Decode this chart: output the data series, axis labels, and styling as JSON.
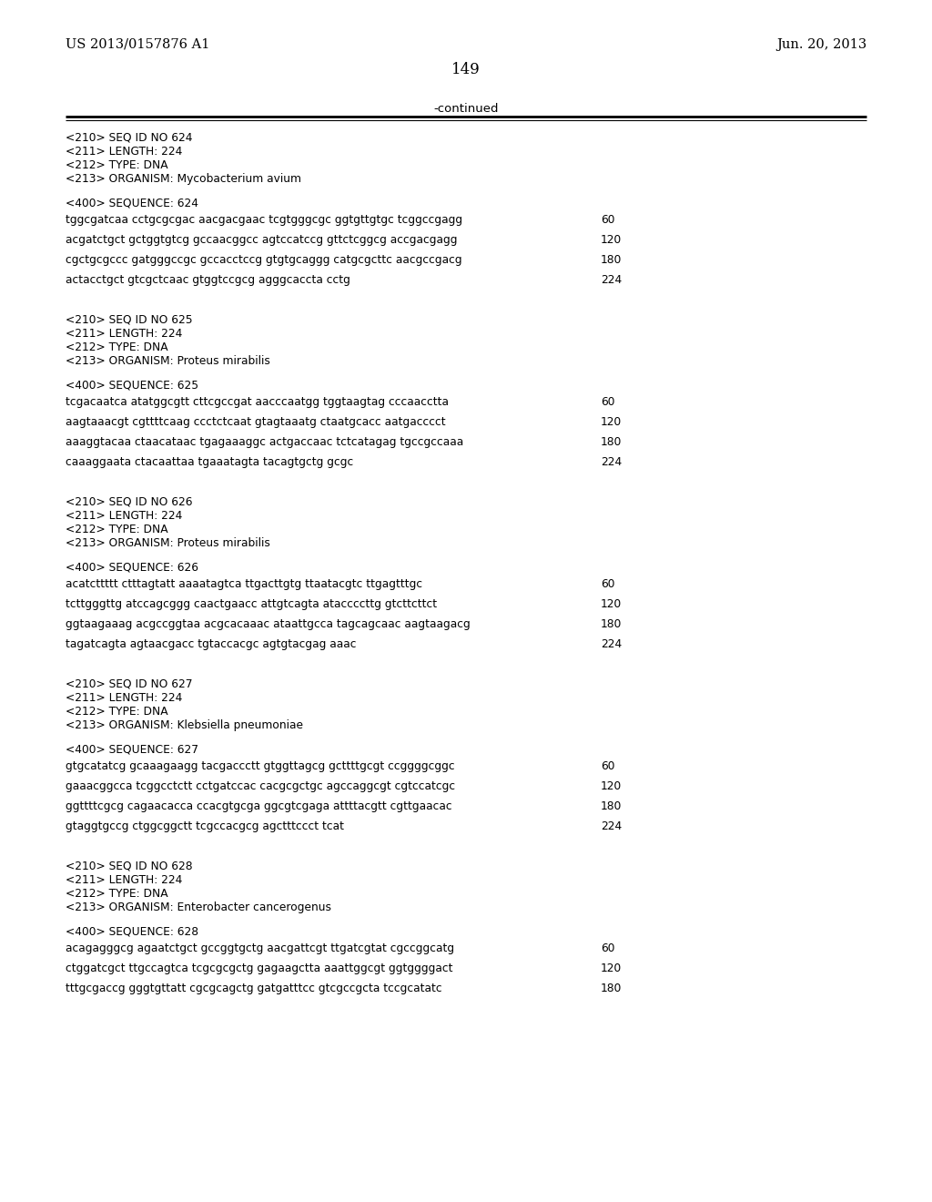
{
  "bg_color": "#ffffff",
  "header_left": "US 2013/0157876 A1",
  "header_right": "Jun. 20, 2013",
  "page_number": "149",
  "continued_text": "-continued",
  "font_mono": "Courier New",
  "font_serif": "DejaVu Serif",
  "sections": [
    {
      "meta": [
        "<210> SEQ ID NO 624",
        "<211> LENGTH: 224",
        "<212> TYPE: DNA",
        "<213> ORGANISM: Mycobacterium avium"
      ],
      "seq_label": "<400> SEQUENCE: 624",
      "sequence_lines": [
        [
          "tggcgatcaa cctgcgcgac aacgacgaac tcgtgggcgc ggtgttgtgc tcggccgagg",
          "60"
        ],
        [
          "acgatctgct gctggtgtcg gccaacggcc agtccatccg gttctcggcg accgacgagg",
          "120"
        ],
        [
          "cgctgcgccc gatgggccgc gccacctccg gtgtgcaggg catgcgcttc aacgccgacg",
          "180"
        ],
        [
          "actacctgct gtcgctcaac gtggtccgcg agggcaccta cctg",
          "224"
        ]
      ]
    },
    {
      "meta": [
        "<210> SEQ ID NO 625",
        "<211> LENGTH: 224",
        "<212> TYPE: DNA",
        "<213> ORGANISM: Proteus mirabilis"
      ],
      "seq_label": "<400> SEQUENCE: 625",
      "sequence_lines": [
        [
          "tcgacaatca atatggcgtt cttcgccgat aacccaatgg tggtaagtag cccaacctta",
          "60"
        ],
        [
          "aagtaaacgt cgttttcaag ccctctcaat gtagtaaatg ctaatgcacc aatgacccct",
          "120"
        ],
        [
          "aaaggtacaa ctaacataac tgagaaaggc actgaccaac tctcatagag tgccgccaaa",
          "180"
        ],
        [
          "caaaggaata ctacaattaa tgaaatagta tacagtgctg gcgc",
          "224"
        ]
      ]
    },
    {
      "meta": [
        "<210> SEQ ID NO 626",
        "<211> LENGTH: 224",
        "<212> TYPE: DNA",
        "<213> ORGANISM: Proteus mirabilis"
      ],
      "seq_label": "<400> SEQUENCE: 626",
      "sequence_lines": [
        [
          "acatcttttt ctttagtatt aaaatagtca ttgacttgtg ttaatacgtc ttgagtttgc",
          "60"
        ],
        [
          "tcttgggttg atccagcggg caactgaacc attgtcagta ataccccttg gtcttcttct",
          "120"
        ],
        [
          "ggtaagaaag acgccggtaa acgcacaaac ataattgcca tagcagcaac aagtaagacg",
          "180"
        ],
        [
          "tagatcagta agtaacgacc tgtaccacgc agtgtacgag aaac",
          "224"
        ]
      ]
    },
    {
      "meta": [
        "<210> SEQ ID NO 627",
        "<211> LENGTH: 224",
        "<212> TYPE: DNA",
        "<213> ORGANISM: Klebsiella pneumoniae"
      ],
      "seq_label": "<400> SEQUENCE: 627",
      "sequence_lines": [
        [
          "gtgcatatcg gcaaagaagg tacgaccctt gtggttagcg gcttttgcgt ccggggcggc",
          "60"
        ],
        [
          "gaaacggcca tcggcctctt cctgatccac cacgcgctgc agccaggcgt cgtccatcgc",
          "120"
        ],
        [
          "ggttttcgcg cagaacacca ccacgtgcga ggcgtcgaga attttacgtt cgttgaacac",
          "180"
        ],
        [
          "gtaggtgccg ctggcggctt tcgccacgcg agctttccct tcat",
          "224"
        ]
      ]
    },
    {
      "meta": [
        "<210> SEQ ID NO 628",
        "<211> LENGTH: 224",
        "<212> TYPE: DNA",
        "<213> ORGANISM: Enterobacter cancerogenus"
      ],
      "seq_label": "<400> SEQUENCE: 628",
      "sequence_lines": [
        [
          "acagagggcg agaatctgct gccggtgctg aacgattcgt ttgatcgtat cgccggcatg",
          "60"
        ],
        [
          "ctggatcgct ttgccagtca tcgcgcgctg gagaagctta aaattggcgt ggtggggact",
          "120"
        ],
        [
          "tttgcgaccg gggtgttatt cgcgcagctg gatgatttcc gtcgccgcta tccgcatatc",
          "180"
        ]
      ]
    }
  ]
}
